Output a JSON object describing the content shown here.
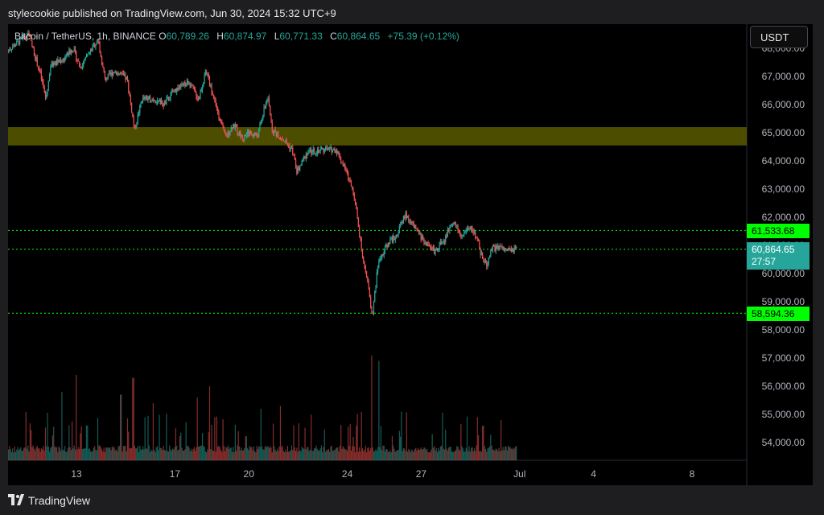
{
  "header": {
    "published": "stylecookie published on TradingView.com, Jun 30, 2024 15:32 UTC+9"
  },
  "legend": {
    "symbol": "Bitcoin / TetherUS, 1h, BINANCE",
    "o_label": "O",
    "o": "60,789.26",
    "h_label": "H",
    "h": "60,874.97",
    "l_label": "L",
    "l": "60,771.33",
    "c_label": "C",
    "c": "60,864.65",
    "change": "+75.39 (+0.12%)"
  },
  "currency": "USDT",
  "tags": {
    "resistance": "61,533.68",
    "current": "60,864.65",
    "countdown": "27:57",
    "support": "58,594.36"
  },
  "footer": {
    "brand": "TradingView"
  },
  "colors": {
    "up": "#26a69a",
    "down": "#ef5350",
    "zone": "#4d4d00",
    "line": "#00ff00"
  },
  "chart_data": {
    "type": "candlestick",
    "symbol": "Bitcoin / TetherUS",
    "interval": "1h",
    "exchange": "BINANCE",
    "y_ticks": [
      54000,
      55000,
      56000,
      57000,
      58000,
      59000,
      60000,
      61000,
      62000,
      63000,
      64000,
      65000,
      66000,
      67000,
      68000
    ],
    "y_tick_labels": [
      "54,000.00",
      "55,000.00",
      "56,000.00",
      "57,000.00",
      "58,000.00",
      "59,000.00",
      "60,000.00",
      "61,000.00",
      "62,000.00",
      "63,000.00",
      "64,000.00",
      "65,000.00",
      "66,000.00",
      "67,000.00",
      "68,000.00"
    ],
    "ylim": [
      53600,
      68900
    ],
    "x_ticks": [
      {
        "label": "13",
        "day": 13
      },
      {
        "label": "17",
        "day": 17
      },
      {
        "label": "20",
        "day": 20
      },
      {
        "label": "24",
        "day": 24
      },
      {
        "label": "27",
        "day": 27
      },
      {
        "label": "Jul",
        "day": 31
      },
      {
        "label": "4",
        "day": 34
      },
      {
        "label": "8",
        "day": 38
      }
    ],
    "xlim_days": [
      10.2,
      40.9
    ],
    "supply_zone": [
      64550,
      65200
    ],
    "horizontal_lines": [
      61533.68,
      60864.65,
      58594.36
    ],
    "price_path": [
      [
        10.2,
        67900
      ],
      [
        11.1,
        68500
      ],
      [
        11.6,
        67000
      ],
      [
        11.8,
        66200
      ],
      [
        12.0,
        67400
      ],
      [
        12.5,
        67600
      ],
      [
        12.9,
        68000
      ],
      [
        13.2,
        67300
      ],
      [
        13.6,
        67900
      ],
      [
        13.9,
        68300
      ],
      [
        14.2,
        66900
      ],
      [
        14.6,
        67200
      ],
      [
        15.1,
        66900
      ],
      [
        15.4,
        65100
      ],
      [
        15.7,
        66200
      ],
      [
        16.2,
        66200
      ],
      [
        16.6,
        66000
      ],
      [
        17.0,
        66500
      ],
      [
        17.6,
        66800
      ],
      [
        18.0,
        66200
      ],
      [
        18.3,
        67200
      ],
      [
        18.7,
        66000
      ],
      [
        19.1,
        64800
      ],
      [
        19.4,
        65300
      ],
      [
        19.8,
        64800
      ],
      [
        20.0,
        65000
      ],
      [
        20.4,
        64900
      ],
      [
        20.8,
        66300
      ],
      [
        21.0,
        65100
      ],
      [
        21.4,
        64800
      ],
      [
        21.8,
        64400
      ],
      [
        22.0,
        63600
      ],
      [
        22.4,
        64300
      ],
      [
        23.0,
        64400
      ],
      [
        23.6,
        64400
      ],
      [
        24.0,
        63600
      ],
      [
        24.3,
        62900
      ],
      [
        24.6,
        61000
      ],
      [
        24.85,
        59800
      ],
      [
        25.05,
        58500
      ],
      [
        25.3,
        60400
      ],
      [
        25.7,
        61100
      ],
      [
        26.0,
        61300
      ],
      [
        26.4,
        62100
      ],
      [
        26.8,
        61600
      ],
      [
        27.2,
        61100
      ],
      [
        27.6,
        60800
      ],
      [
        28.0,
        61200
      ],
      [
        28.3,
        61900
      ],
      [
        28.7,
        61300
      ],
      [
        29.0,
        61700
      ],
      [
        29.3,
        61300
      ],
      [
        29.5,
        60600
      ],
      [
        29.7,
        60300
      ],
      [
        29.9,
        60900
      ],
      [
        30.3,
        60900
      ],
      [
        30.6,
        60800
      ],
      [
        30.9,
        60864.65
      ]
    ],
    "volume_peaks": [
      [
        12.4,
        55800
      ],
      [
        13.0,
        56400
      ],
      [
        14.8,
        55700
      ],
      [
        15.3,
        56300
      ],
      [
        16.1,
        55400
      ],
      [
        17.9,
        55600
      ],
      [
        18.4,
        56000
      ],
      [
        18.7,
        55900
      ],
      [
        20.5,
        55200
      ],
      [
        21.3,
        55300
      ],
      [
        25.0,
        57100
      ],
      [
        25.3,
        56900
      ],
      [
        26.2,
        55100
      ],
      [
        29.5,
        54600
      ]
    ]
  }
}
